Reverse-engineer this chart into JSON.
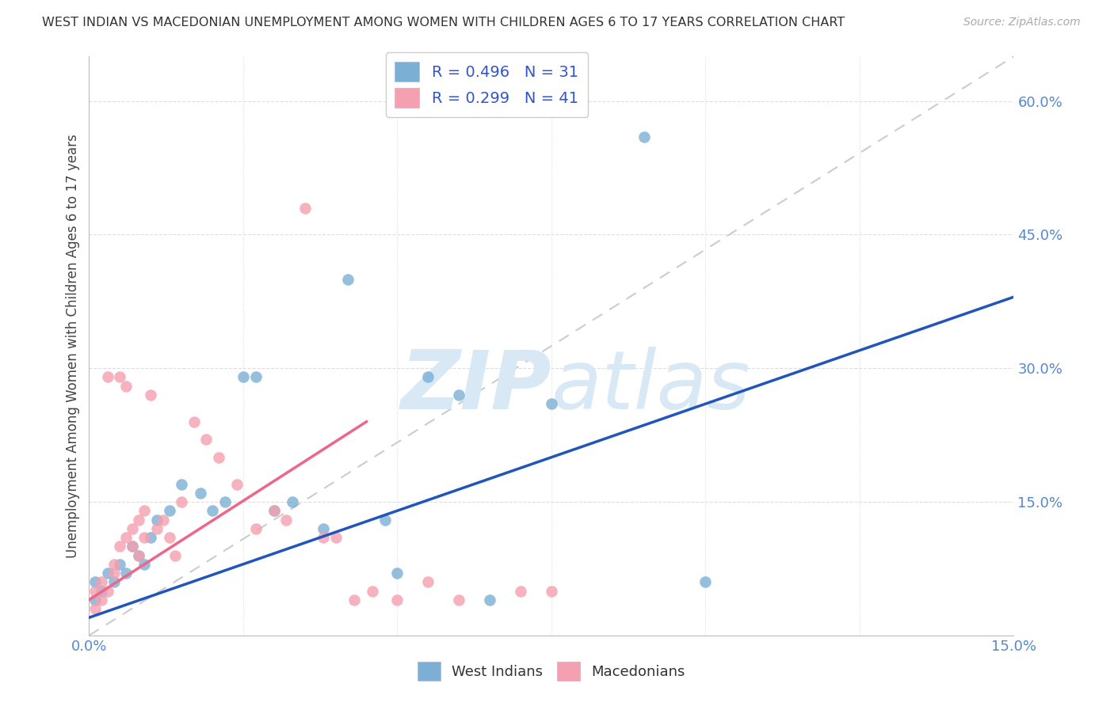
{
  "title": "WEST INDIAN VS MACEDONIAN UNEMPLOYMENT AMONG WOMEN WITH CHILDREN AGES 6 TO 17 YEARS CORRELATION CHART",
  "source": "Source: ZipAtlas.com",
  "ylabel": "Unemployment Among Women with Children Ages 6 to 17 years",
  "xlim": [
    0.0,
    0.15
  ],
  "ylim": [
    0.0,
    0.65
  ],
  "xticks": [
    0.0,
    0.025,
    0.05,
    0.075,
    0.1,
    0.125,
    0.15
  ],
  "yticks": [
    0.0,
    0.15,
    0.3,
    0.45,
    0.6
  ],
  "wi_color": "#7BAFD4",
  "mac_color": "#F4A0B0",
  "wi_line_color": "#2255BB",
  "mac_line_color": "#EE6688",
  "diag_color": "#CCCCCC",
  "grid_color": "#DDDDDD",
  "wi_R": 0.496,
  "wi_N": 31,
  "mac_R": 0.299,
  "mac_N": 41,
  "wi_x": [
    0.001,
    0.001,
    0.002,
    0.003,
    0.004,
    0.005,
    0.006,
    0.007,
    0.008,
    0.009,
    0.01,
    0.011,
    0.013,
    0.015,
    0.018,
    0.02,
    0.022,
    0.025,
    0.027,
    0.03,
    0.033,
    0.038,
    0.042,
    0.048,
    0.05,
    0.055,
    0.06,
    0.065,
    0.075,
    0.09,
    0.1
  ],
  "wi_y": [
    0.04,
    0.06,
    0.05,
    0.07,
    0.06,
    0.08,
    0.07,
    0.1,
    0.09,
    0.08,
    0.11,
    0.13,
    0.14,
    0.17,
    0.16,
    0.14,
    0.15,
    0.29,
    0.29,
    0.14,
    0.15,
    0.12,
    0.4,
    0.13,
    0.07,
    0.29,
    0.27,
    0.04,
    0.26,
    0.56,
    0.06
  ],
  "mac_x": [
    0.001,
    0.001,
    0.002,
    0.002,
    0.003,
    0.003,
    0.004,
    0.004,
    0.005,
    0.005,
    0.006,
    0.006,
    0.007,
    0.007,
    0.008,
    0.008,
    0.009,
    0.009,
    0.01,
    0.011,
    0.012,
    0.013,
    0.014,
    0.015,
    0.017,
    0.019,
    0.021,
    0.024,
    0.027,
    0.03,
    0.032,
    0.035,
    0.038,
    0.04,
    0.043,
    0.046,
    0.05,
    0.055,
    0.06,
    0.07,
    0.075
  ],
  "mac_y": [
    0.03,
    0.05,
    0.04,
    0.06,
    0.05,
    0.29,
    0.07,
    0.08,
    0.29,
    0.1,
    0.28,
    0.11,
    0.12,
    0.1,
    0.09,
    0.13,
    0.11,
    0.14,
    0.27,
    0.12,
    0.13,
    0.11,
    0.09,
    0.15,
    0.24,
    0.22,
    0.2,
    0.17,
    0.12,
    0.14,
    0.13,
    0.48,
    0.11,
    0.11,
    0.04,
    0.05,
    0.04,
    0.06,
    0.04,
    0.05,
    0.05
  ]
}
